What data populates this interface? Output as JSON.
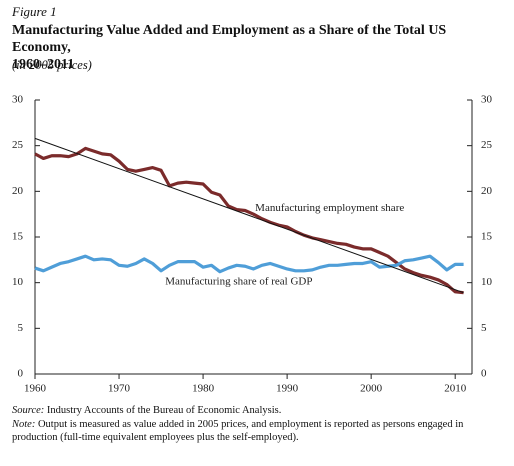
{
  "chart_data": {
    "type": "line",
    "figure_label": "Figure 1",
    "title": [
      "Manufacturing Value Added and Employment as a Share of the Total US Economy,",
      "1960–2011"
    ],
    "subtitle": "(in 2005 prices)",
    "source_label": "Source:",
    "source": "Industry Accounts of the Bureau of Economic Analysis.",
    "note_label": "Note:",
    "note": "Output is measured as value added in 2005 prices, and employment is reported as persons engaged in production (full-time equivalent employees plus the self-employed).",
    "x": [
      1960,
      1961,
      1962,
      1963,
      1964,
      1965,
      1966,
      1967,
      1968,
      1969,
      1970,
      1971,
      1972,
      1973,
      1974,
      1975,
      1976,
      1977,
      1978,
      1979,
      1980,
      1981,
      1982,
      1983,
      1984,
      1985,
      1986,
      1987,
      1988,
      1989,
      1990,
      1991,
      1992,
      1993,
      1994,
      1995,
      1996,
      1997,
      1998,
      1999,
      2000,
      2001,
      2002,
      2003,
      2004,
      2005,
      2006,
      2007,
      2008,
      2009,
      2010,
      2011
    ],
    "series": [
      {
        "name": "Manufacturing employment share",
        "color": "#7b2b2b",
        "values": [
          24.1,
          23.6,
          23.9,
          23.9,
          23.8,
          24.1,
          24.7,
          24.4,
          24.1,
          24.0,
          23.3,
          22.4,
          22.2,
          22.4,
          22.6,
          22.3,
          20.6,
          20.9,
          21.0,
          20.9,
          20.8,
          19.9,
          19.6,
          18.4,
          18.0,
          17.9,
          17.5,
          17.0,
          16.6,
          16.3,
          16.1,
          15.6,
          15.2,
          14.9,
          14.7,
          14.5,
          14.3,
          14.2,
          13.9,
          13.7,
          13.7,
          13.3,
          12.9,
          12.2,
          11.5,
          11.1,
          10.8,
          10.6,
          10.3,
          9.8,
          9.0,
          8.9
        ]
      },
      {
        "name": "Manufacturing share of real GDP",
        "color": "#4f9ed8",
        "values": [
          11.6,
          11.3,
          11.7,
          12.1,
          12.3,
          12.6,
          12.9,
          12.5,
          12.6,
          12.5,
          11.9,
          11.8,
          12.1,
          12.6,
          12.1,
          11.3,
          11.9,
          12.3,
          12.3,
          12.3,
          11.7,
          11.9,
          11.2,
          11.6,
          11.9,
          11.8,
          11.5,
          11.9,
          12.1,
          11.8,
          11.5,
          11.3,
          11.3,
          11.4,
          11.7,
          11.9,
          11.9,
          12.0,
          12.1,
          12.1,
          12.3,
          11.7,
          11.8,
          11.9,
          12.4,
          12.5,
          12.7,
          12.9,
          12.2,
          11.4,
          12.0,
          12.0
        ]
      }
    ],
    "trend": {
      "x": [
        1960,
        2011
      ],
      "values": [
        25.8,
        8.9
      ],
      "color": "#111111"
    },
    "xlim": [
      1960,
      2012
    ],
    "xticks": [
      1960,
      1970,
      1980,
      1990,
      2000,
      2010
    ],
    "ylim": [
      0,
      30
    ],
    "yticks": [
      0,
      5,
      10,
      15,
      20,
      25,
      30
    ]
  }
}
